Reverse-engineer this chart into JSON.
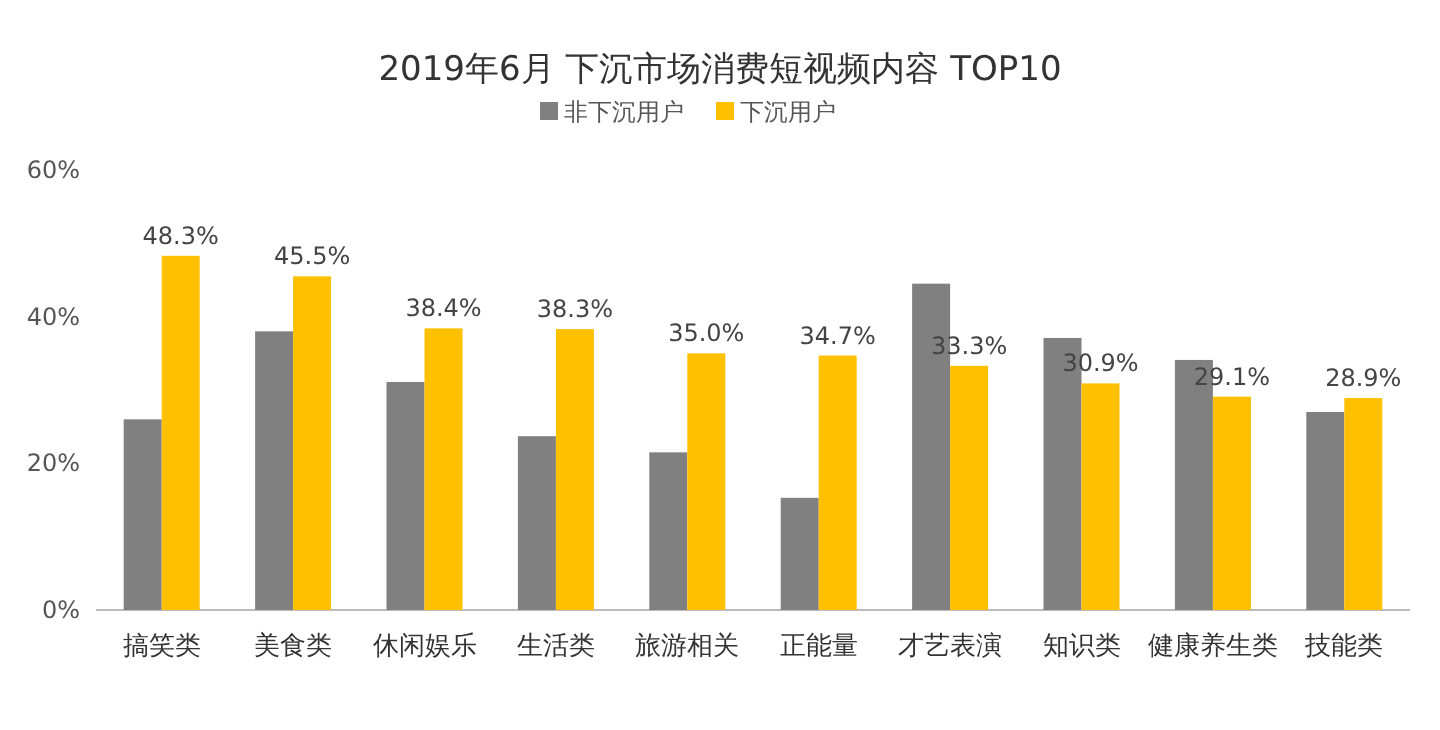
{
  "chart_data": {
    "type": "bar",
    "title": "2019年6月 下沉市场消费短视频内容 TOP10",
    "categories": [
      "搞笑类",
      "美食类",
      "休闲娱乐",
      "生活类",
      "旅游相关",
      "正能量",
      "才艺表演",
      "知识类",
      "健康养生类",
      "技能类"
    ],
    "series": [
      {
        "name": "非下沉用户",
        "color": "#808080",
        "values": [
          26,
          38,
          31.1,
          23.7,
          21.5,
          15.3,
          44.5,
          37.1,
          34.1,
          27
        ]
      },
      {
        "name": "下沉用户",
        "color": "#ffc000",
        "values": [
          48.3,
          45.5,
          38.4,
          38.3,
          35.0,
          34.7,
          33.3,
          30.9,
          29.1,
          28.9
        ],
        "value_labels": [
          "48.3%",
          "45.5%",
          "38.4%",
          "38.3%",
          "35.0%",
          "34.7%",
          "33.3%",
          "30.9%",
          "29.1%",
          "28.9%"
        ]
      }
    ],
    "ylim": [
      0,
      60
    ],
    "yticks": [
      {
        "value": 0,
        "label": "0%"
      },
      {
        "value": 20,
        "label": "20%"
      },
      {
        "value": 40,
        "label": "40%"
      },
      {
        "value": 60,
        "label": "60%"
      }
    ],
    "legend": "top"
  }
}
